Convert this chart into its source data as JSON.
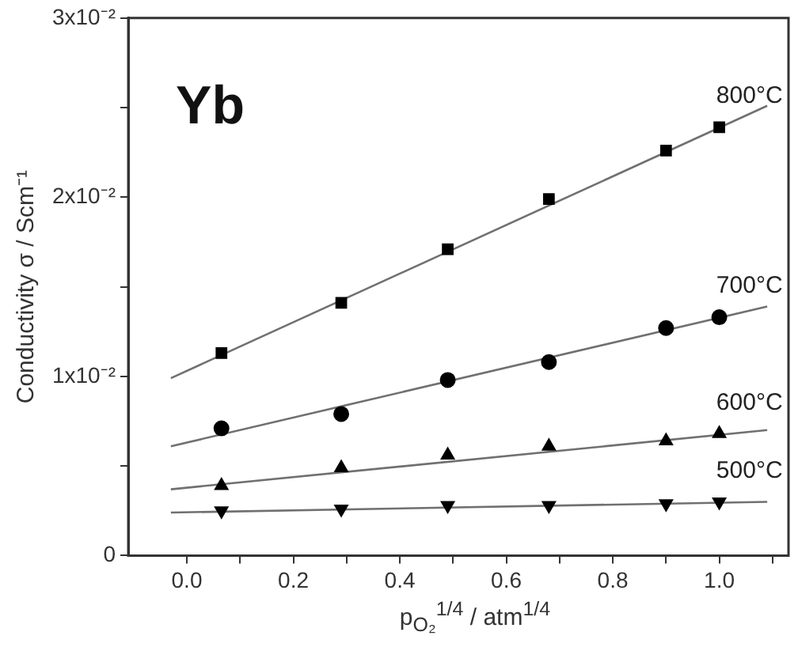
{
  "chart_data": {
    "type": "scatter",
    "xlabel": "p$_{O₂}$$^{1/4}$ / atm$^{1/4}$",
    "ylabel": "Conductivity σ / Scm⁻¹",
    "annotations": [
      "Yb"
    ],
    "xlim": [
      -0.11,
      1.13
    ],
    "ylim": [
      0,
      0.03
    ],
    "xticks": [
      {
        "value": 0,
        "label": "0.0"
      },
      {
        "value": 0.1,
        "label": null
      },
      {
        "value": 0.2,
        "label": "0.2"
      },
      {
        "value": 0.3,
        "label": null
      },
      {
        "value": 0.4,
        "label": "0.4"
      },
      {
        "value": 0.5,
        "label": null
      },
      {
        "value": 0.6,
        "label": "0.6"
      },
      {
        "value": 0.7,
        "label": null
      },
      {
        "value": 0.8,
        "label": "0.8"
      },
      {
        "value": 0.9,
        "label": null
      },
      {
        "value": 1,
        "label": "1.0"
      },
      {
        "value": 1.1,
        "label": null
      }
    ],
    "yticks": [
      0,
      {
        "value": 0.005,
        "label": null
      },
      {
        "value": 0.01,
        "label": "1x10⁻²"
      },
      {
        "value": 0.015,
        "label": null
      },
      {
        "value": 0.02,
        "label": "2x10⁻²"
      },
      {
        "value": 0.025,
        "label": null
      },
      {
        "value": 0.03,
        "label": "3x10⁻²"
      }
    ],
    "grid": false,
    "legend": false,
    "series": [
      {
        "name": "800°C",
        "color": "#000000",
        "marker": "square",
        "x": [
          0.065,
          0.29,
          0.49,
          0.68,
          0.9,
          1.0
        ],
        "values": [
          0.0113,
          0.0141,
          0.0171,
          0.0199,
          0.0226,
          0.0239
        ]
      },
      {
        "name": "700°C",
        "color": "#000000",
        "marker": "circle",
        "x": [
          0.065,
          0.29,
          0.49,
          0.68,
          0.9,
          1.0
        ],
        "values": [
          0.0071,
          0.0079,
          0.0098,
          0.0108,
          0.0127,
          0.0133
        ]
      },
      {
        "name": "600°C",
        "color": "#000000",
        "marker": "triangle",
        "x": [
          0.065,
          0.29,
          0.49,
          0.68,
          0.9,
          1.0
        ],
        "values": [
          0.0039,
          0.0049,
          0.0056,
          0.0061,
          0.0064,
          0.0068
        ]
      },
      {
        "name": "500°C",
        "color": "#000000",
        "marker": "triangle-down",
        "x": [
          0.065,
          0.29,
          0.49,
          0.68,
          0.9,
          1.0
        ],
        "values": [
          0.0025,
          0.0026,
          0.0028,
          0.0028,
          0.0029,
          0.003
        ]
      },
      {
        "type": "line",
        "color": "#707070",
        "marker": "none",
        "x": [
          -0.03,
          1.09
        ],
        "values": [
          0.0099,
          0.0251
        ]
      },
      {
        "type": "line",
        "color": "#707070",
        "marker": "none",
        "x": [
          -0.03,
          1.09
        ],
        "values": [
          0.0061,
          0.0139
        ]
      },
      {
        "type": "line",
        "color": "#707070",
        "marker": "none",
        "x": [
          -0.03,
          1.09
        ],
        "values": [
          0.0037,
          0.007
        ]
      },
      {
        "type": "line",
        "color": "#707070",
        "marker": "none",
        "x": [
          -0.03,
          1.09
        ],
        "values": [
          0.0024,
          0.003
        ]
      }
    ]
  }
}
